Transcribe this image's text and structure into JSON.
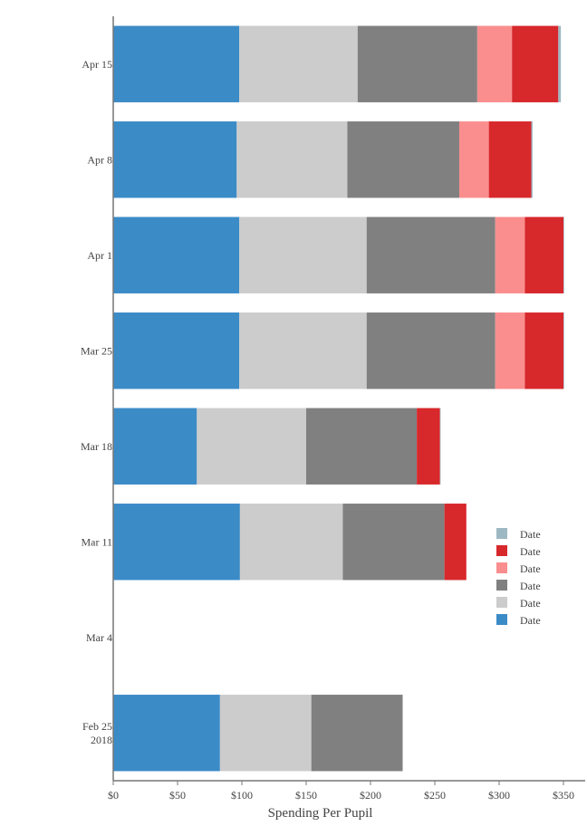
{
  "chart_data": {
    "type": "bar",
    "orientation": "horizontal",
    "stacked": true,
    "title": "",
    "xlabel": "Spending Per Pupil",
    "ylabel": "",
    "xlim": [
      0,
      368
    ],
    "x_ticks": [
      0,
      50,
      100,
      150,
      200,
      250,
      300,
      350
    ],
    "x_tick_labels": [
      "$0",
      "$50",
      "$100",
      "$150",
      "$200",
      "$250",
      "$300",
      "$350"
    ],
    "categories": [
      "Feb 25\n2018",
      "Mar 4",
      "Mar 11",
      "Mar 18",
      "Mar 25",
      "Apr 1",
      "Apr 8",
      "Apr 15"
    ],
    "series": [
      {
        "name": "Date",
        "color": "#3b8bc7",
        "values": [
          83,
          0,
          98.5,
          65,
          98,
          98,
          96,
          98
        ]
      },
      {
        "name": "Date",
        "color": "#cccccc",
        "values": [
          71,
          0,
          80,
          85,
          99,
          99,
          86,
          92
        ]
      },
      {
        "name": "Date",
        "color": "#808080",
        "values": [
          71,
          0,
          79,
          86,
          100,
          100,
          87,
          93
        ]
      },
      {
        "name": "Date",
        "color": "#fa8e8e",
        "values": [
          0,
          0,
          0,
          0,
          23,
          23,
          23,
          27
        ]
      },
      {
        "name": "Date",
        "color": "#d7282c",
        "values": [
          0,
          0,
          17,
          18,
          30,
          30,
          33,
          36
        ]
      },
      {
        "name": "Date",
        "color": "#9db8c3",
        "values": [
          0,
          0,
          0,
          0.5,
          0.5,
          0.5,
          1,
          2
        ]
      }
    ],
    "legend": {
      "placement": "right",
      "order": "reversed"
    },
    "grid": false
  }
}
